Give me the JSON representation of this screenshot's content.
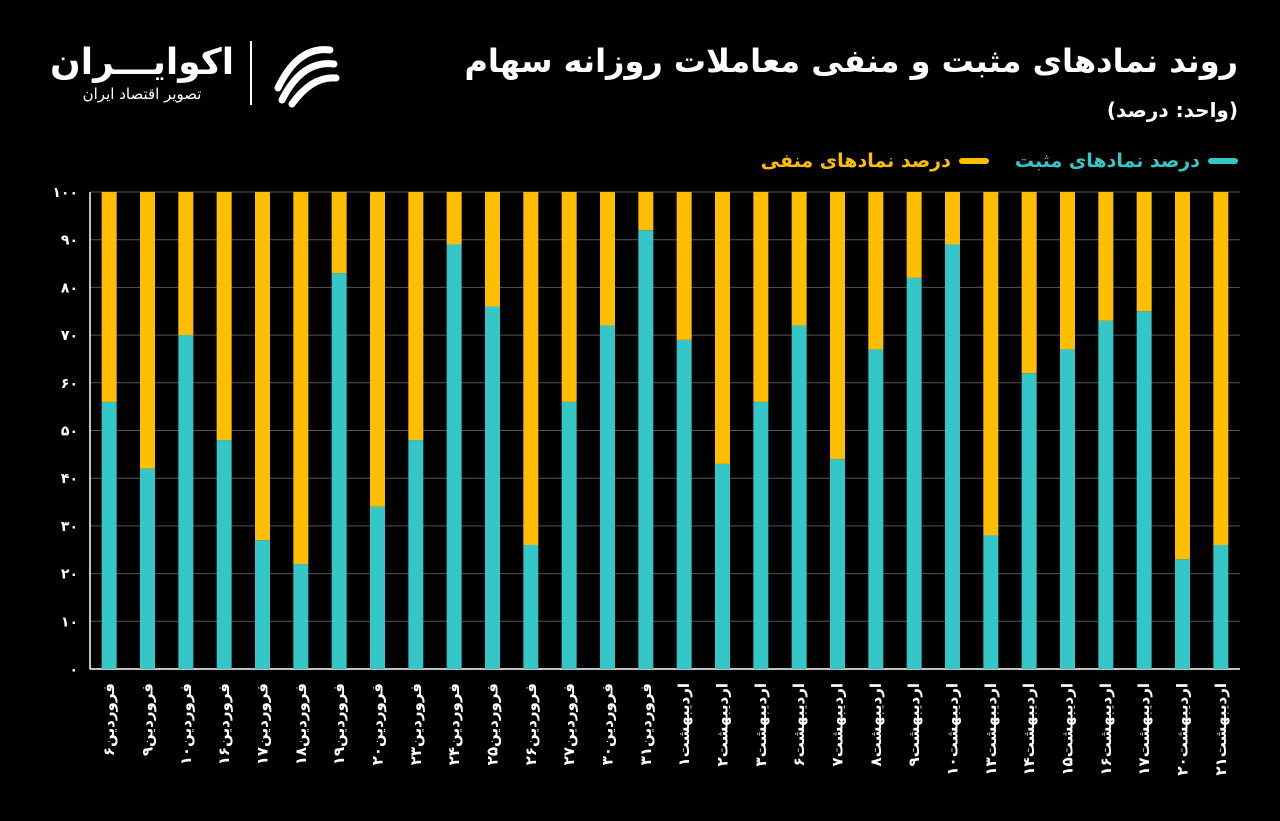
{
  "header": {
    "title": "روند نمادهای مثبت و منفی معاملات روزانه سهام",
    "unit": "(واحد: درصد)"
  },
  "logo": {
    "name": "اکوایـــران",
    "tagline": "تصویر اقتصاد ایران",
    "mark_icon": "ekoiran-swirl-icon"
  },
  "colors": {
    "positive": "#35C6C8",
    "negative": "#FFBF00",
    "background": "#000000",
    "axis": "#ffffff",
    "grid": "#555555"
  },
  "chart_data": {
    "type": "bar",
    "stacked": true,
    "title": "روند نمادهای مثبت و منفی معاملات روزانه سهام",
    "ylim": [
      0,
      100
    ],
    "y_ticks": [
      "۰",
      "۱۰",
      "۲۰",
      "۳۰",
      "۴۰",
      "۵۰",
      "۶۰",
      "۷۰",
      "۸۰",
      "۹۰",
      "۱۰۰"
    ],
    "grid": true,
    "legend_position": "top-right",
    "categories": [
      "فروردین۶",
      "فروردین۹",
      "فروردین۱۰",
      "فروردین۱۶",
      "فروردین۱۷",
      "فروردین۱۸",
      "فروردین۱۹",
      "فروردین۲۰",
      "فروردین۲۳",
      "فروردین۲۴",
      "فروردین۲۵",
      "فروردین۲۶",
      "فروردین۲۷",
      "فروردین۳۰",
      "فروردین۳۱",
      "اردیبهشت۱",
      "اردیبهشت۲",
      "اردیبهشت۳",
      "اردیبهشت۶",
      "اردیبهشت۷",
      "اردیبهشت۸",
      "اردیبهشت۹",
      "اردیبهشت۱۰",
      "اردیبهشت۱۳",
      "اردیبهشت۱۴",
      "اردیبهشت۱۵",
      "اردیبهشت۱۶",
      "اردیبهشت۱۷",
      "اردیبهشت۲۰",
      "اردیبهشت۲۱"
    ],
    "series": [
      {
        "name": "درصد نمادهای مثبت",
        "color": "#35C6C8",
        "values": [
          56,
          42,
          70,
          48,
          27,
          22,
          83,
          34,
          48,
          89,
          76,
          26,
          56,
          72,
          92,
          69,
          43,
          56,
          72,
          44,
          67,
          82,
          89,
          28,
          62,
          67,
          73,
          75,
          23,
          26
        ]
      },
      {
        "name": "درصد نمادهای منفی",
        "color": "#FFBF00",
        "values": [
          44,
          58,
          30,
          52,
          73,
          78,
          17,
          66,
          52,
          11,
          24,
          74,
          44,
          28,
          8,
          31,
          57,
          44,
          28,
          56,
          33,
          18,
          11,
          72,
          38,
          33,
          27,
          25,
          77,
          74
        ]
      }
    ]
  }
}
